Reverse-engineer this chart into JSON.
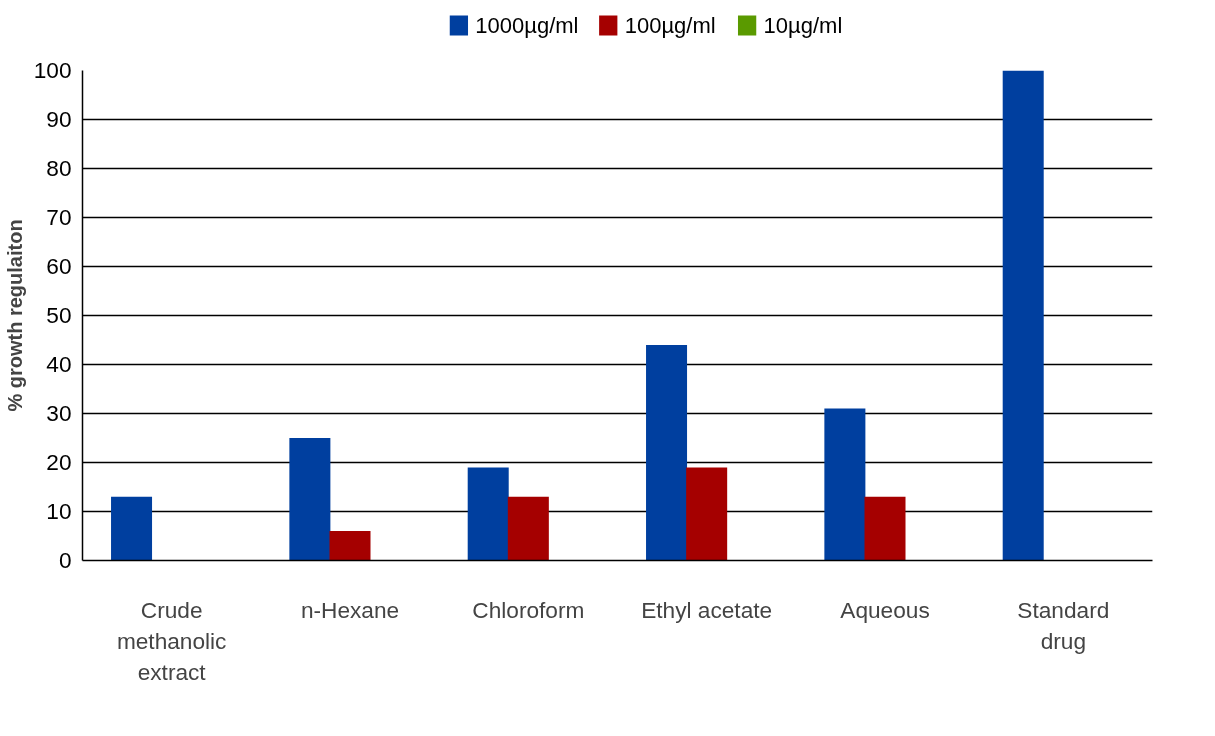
{
  "chart_data": {
    "type": "bar",
    "ylabel": "% growth regulaiton",
    "categories": [
      "Crude\nmethanolic\nextract",
      "n-Hexane",
      "Chloroform",
      "Ethyl acetate",
      "Aqueous",
      "Standard\ndrug"
    ],
    "series": [
      {
        "name": "1000µg/ml",
        "color": "#003f9f",
        "values": [
          13,
          25,
          19,
          44,
          31,
          100
        ]
      },
      {
        "name": "100µg/ml",
        "color": "#a50000",
        "values": [
          0,
          6,
          13,
          19,
          13,
          0
        ]
      },
      {
        "name": "10µg/ml",
        "color": "#5a9a00",
        "values": [
          0,
          0,
          0,
          0,
          0,
          0
        ]
      }
    ],
    "ylim": [
      0,
      100
    ],
    "yticks": [
      0,
      10,
      20,
      30,
      40,
      50,
      60,
      70,
      80,
      90,
      100
    ],
    "grid": "y",
    "legend": "top"
  }
}
